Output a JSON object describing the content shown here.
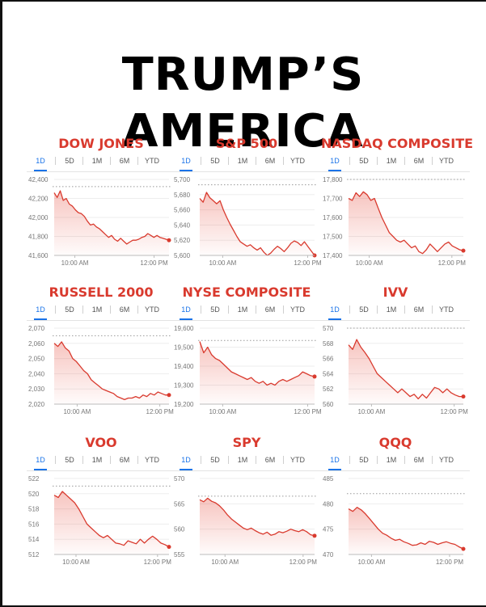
{
  "title": "TRUMP’S AMERICA",
  "tabs": [
    "1D",
    "5D",
    "1M",
    "6M",
    "YTD"
  ],
  "chart_data": [
    {
      "type": "area",
      "title": "DOW JONES",
      "ylim": [
        41600,
        42400
      ],
      "yticks": [
        {
          "v": 42400,
          "label": "42,400"
        },
        {
          "v": 42200,
          "label": "42,200"
        },
        {
          "v": 42000,
          "label": "42,000"
        },
        {
          "v": 41800,
          "label": "41,800"
        },
        {
          "v": 41600,
          "label": "41,600"
        }
      ],
      "xticks": [
        {
          "t": 0.18,
          "label": "10:00 AM"
        },
        {
          "t": 0.87,
          "label": "12:00 PM"
        }
      ],
      "prev_close": 42325,
      "values": [
        42260,
        42210,
        42280,
        42180,
        42200,
        42140,
        42120,
        42080,
        42050,
        42040,
        42010,
        41960,
        41920,
        41930,
        41900,
        41880,
        41850,
        41820,
        41790,
        41810,
        41770,
        41750,
        41780,
        41750,
        41720,
        41740,
        41760,
        41760,
        41770,
        41790,
        41800,
        41830,
        41810,
        41790,
        41810,
        41790,
        41780,
        41770,
        41760
      ]
    },
    {
      "type": "area",
      "title": "S&P 500",
      "ylim": [
        5600,
        5700
      ],
      "yticks": [
        {
          "v": 5700,
          "label": "5,700"
        },
        {
          "v": 5680,
          "label": "5,680"
        },
        {
          "v": 5660,
          "label": "5,660"
        },
        {
          "v": 5640,
          "label": "5,640"
        },
        {
          "v": 5620,
          "label": "5,620"
        },
        {
          "v": 5600,
          "label": "5,600"
        }
      ],
      "xticks": [
        {
          "t": 0.2,
          "label": "10:00 AM"
        },
        {
          "t": 0.94,
          "label": "12:00 PM"
        }
      ],
      "prev_close": 5693,
      "values": [
        5675,
        5670,
        5683,
        5676,
        5672,
        5668,
        5672,
        5660,
        5650,
        5641,
        5633,
        5625,
        5618,
        5615,
        5612,
        5614,
        5610,
        5607,
        5610,
        5604,
        5600,
        5603,
        5608,
        5612,
        5609,
        5605,
        5610,
        5616,
        5619,
        5617,
        5613,
        5618,
        5612,
        5606,
        5600
      ]
    },
    {
      "type": "area",
      "title": "NASDAQ COMPOSITE",
      "ylim": [
        17400,
        17800
      ],
      "yticks": [
        {
          "v": 17800,
          "label": "17,800"
        },
        {
          "v": 17700,
          "label": "17,700"
        },
        {
          "v": 17600,
          "label": "17,600"
        },
        {
          "v": 17500,
          "label": "17,500"
        },
        {
          "v": 17400,
          "label": "17,400"
        }
      ],
      "xticks": [
        {
          "t": 0.18,
          "label": "10:00 AM"
        },
        {
          "t": 0.9,
          "label": "12:00 PM"
        }
      ],
      "prev_close": 17800,
      "values": [
        17700,
        17690,
        17730,
        17710,
        17735,
        17720,
        17690,
        17700,
        17650,
        17600,
        17560,
        17520,
        17500,
        17480,
        17470,
        17480,
        17460,
        17440,
        17450,
        17420,
        17410,
        17430,
        17460,
        17440,
        17420,
        17440,
        17460,
        17470,
        17450,
        17440,
        17430,
        17425
      ]
    },
    {
      "type": "area",
      "title": "RUSSELL 2000",
      "ylim": [
        2020,
        2070
      ],
      "yticks": [
        {
          "v": 2070,
          "label": "2,070"
        },
        {
          "v": 2060,
          "label": "2,060"
        },
        {
          "v": 2050,
          "label": "2,050"
        },
        {
          "v": 2040,
          "label": "2,040"
        },
        {
          "v": 2030,
          "label": "2,030"
        },
        {
          "v": 2020,
          "label": "2,020"
        }
      ],
      "xticks": [
        {
          "t": 0.2,
          "label": "10:00 AM"
        },
        {
          "t": 0.92,
          "label": "12:00 PM"
        }
      ],
      "prev_close": 2065,
      "values": [
        2060,
        2058,
        2061,
        2057,
        2055,
        2050,
        2048,
        2045,
        2042,
        2040,
        2036,
        2034,
        2032,
        2030,
        2029,
        2028,
        2027,
        2025,
        2024,
        2023,
        2024,
        2024,
        2025,
        2024,
        2026,
        2025,
        2027,
        2026,
        2028,
        2027,
        2026,
        2026
      ]
    },
    {
      "type": "area",
      "title": "NYSE COMPOSITE",
      "ylim": [
        19200,
        19600
      ],
      "yticks": [
        {
          "v": 19600,
          "label": "19,600"
        },
        {
          "v": 19500,
          "label": "19,500"
        },
        {
          "v": 19400,
          "label": "19,400"
        },
        {
          "v": 19300,
          "label": "19,300"
        },
        {
          "v": 19200,
          "label": "19,200"
        }
      ],
      "xticks": [
        {
          "t": 0.2,
          "label": "10:00 AM"
        },
        {
          "t": 0.94,
          "label": "12:00 PM"
        }
      ],
      "prev_close": 19535,
      "values": [
        19530,
        19470,
        19500,
        19460,
        19440,
        19430,
        19410,
        19390,
        19370,
        19360,
        19350,
        19340,
        19330,
        19340,
        19320,
        19310,
        19320,
        19300,
        19310,
        19300,
        19320,
        19330,
        19320,
        19330,
        19340,
        19350,
        19370,
        19360,
        19350,
        19345
      ]
    },
    {
      "type": "area",
      "title": "IVV",
      "ylim": [
        560,
        570
      ],
      "yticks": [
        {
          "v": 570,
          "label": "570"
        },
        {
          "v": 568,
          "label": "568"
        },
        {
          "v": 566,
          "label": "566"
        },
        {
          "v": 564,
          "label": "564"
        },
        {
          "v": 562,
          "label": "562"
        },
        {
          "v": 560,
          "label": "560"
        }
      ],
      "xticks": [
        {
          "t": 0.2,
          "label": "10:00 AM"
        },
        {
          "t": 0.92,
          "label": "12:00 PM"
        }
      ],
      "prev_close": 570,
      "values": [
        567.8,
        567.2,
        568.5,
        567.5,
        566.8,
        566.0,
        565.0,
        564.0,
        563.5,
        563.0,
        562.5,
        562.0,
        561.5,
        562.0,
        561.5,
        561.0,
        561.3,
        560.7,
        561.3,
        560.8,
        561.5,
        562.2,
        562.0,
        561.5,
        562.0,
        561.5,
        561.2,
        561.0,
        561.0
      ]
    },
    {
      "type": "area",
      "title": "VOO",
      "ylim": [
        512,
        522
      ],
      "yticks": [
        {
          "v": 522,
          "label": "522"
        },
        {
          "v": 520,
          "label": "520"
        },
        {
          "v": 518,
          "label": "518"
        },
        {
          "v": 516,
          "label": "516"
        },
        {
          "v": 514,
          "label": "514"
        },
        {
          "v": 512,
          "label": "512"
        }
      ],
      "xticks": [
        {
          "t": 0.19,
          "label": "10:00 AM"
        },
        {
          "t": 0.9,
          "label": "12:00 PM"
        }
      ],
      "prev_close": 521,
      "values": [
        519.8,
        519.5,
        520.3,
        519.8,
        519.3,
        518.8,
        518.0,
        517.0,
        516.0,
        515.5,
        515.0,
        514.5,
        514.2,
        514.5,
        514.0,
        513.5,
        513.4,
        513.2,
        513.8,
        513.6,
        513.4,
        514.0,
        513.5,
        514.0,
        514.4,
        514.0,
        513.5,
        513.3,
        513.0
      ]
    },
    {
      "type": "area",
      "title": "SPY",
      "ylim": [
        555,
        570
      ],
      "yticks": [
        {
          "v": 570,
          "label": "570"
        },
        {
          "v": 565,
          "label": "565"
        },
        {
          "v": 560,
          "label": "560"
        },
        {
          "v": 555,
          "label": "555"
        }
      ],
      "xticks": [
        {
          "t": 0.22,
          "label": "10:00 AM"
        },
        {
          "t": 0.9,
          "label": "12:00 PM"
        }
      ],
      "prev_close": 566.5,
      "values": [
        565.8,
        565.4,
        566.1,
        565.5,
        565.2,
        564.6,
        563.8,
        562.8,
        562.0,
        561.4,
        560.8,
        560.2,
        559.9,
        560.2,
        559.7,
        559.3,
        559.0,
        559.4,
        558.8,
        559.0,
        559.5,
        559.3,
        559.6,
        560.0,
        559.7,
        559.5,
        559.9,
        559.5,
        558.9,
        558.7
      ]
    },
    {
      "type": "area",
      "title": "QQQ",
      "ylim": [
        470,
        485
      ],
      "yticks": [
        {
          "v": 485,
          "label": "485"
        },
        {
          "v": 480,
          "label": "480"
        },
        {
          "v": 475,
          "label": "475"
        },
        {
          "v": 470,
          "label": "470"
        }
      ],
      "xticks": [
        {
          "t": 0.2,
          "label": "10:00 AM"
        },
        {
          "t": 0.88,
          "label": "12:00 PM"
        }
      ],
      "prev_close": 482,
      "values": [
        479.0,
        478.5,
        479.3,
        478.8,
        478.0,
        477.0,
        476.0,
        475.0,
        474.2,
        473.8,
        473.2,
        472.8,
        473.0,
        472.5,
        472.2,
        471.8,
        471.9,
        472.3,
        472.0,
        472.6,
        472.4,
        472.0,
        472.3,
        472.5,
        472.2,
        472.0,
        471.5,
        471.1
      ]
    }
  ]
}
